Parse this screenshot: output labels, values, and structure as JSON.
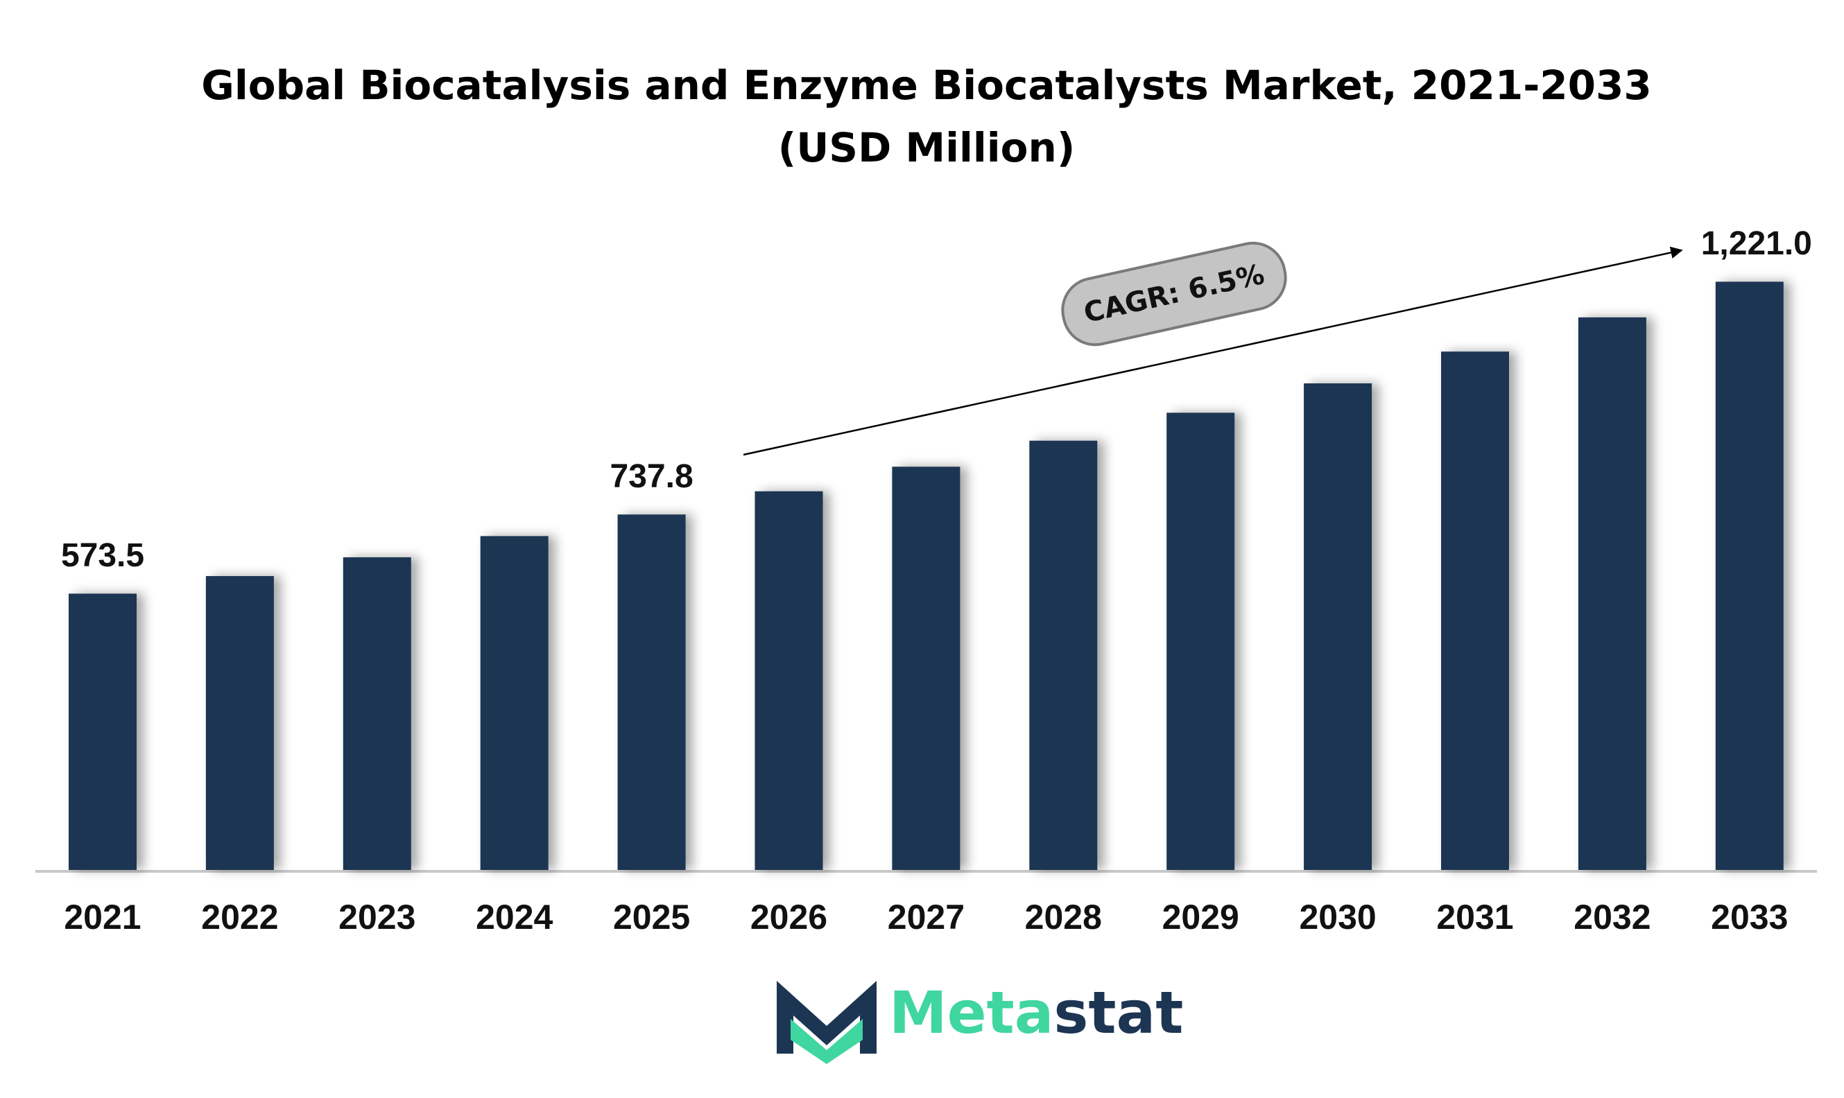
{
  "chart_data": {
    "type": "bar",
    "title": "Global Biocatalysis and Enzyme Biocatalysts Market, 2021-2033",
    "subtitle": "(USD Million)",
    "categories": [
      "2021",
      "2022",
      "2023",
      "2024",
      "2025",
      "2026",
      "2027",
      "2028",
      "2029",
      "2030",
      "2031",
      "2032",
      "2033"
    ],
    "values": [
      573.5,
      610,
      649,
      693,
      737.8,
      786,
      837,
      891,
      949,
      1010,
      1076,
      1147,
      1221.0
    ],
    "value_labels": [
      "573.5",
      null,
      null,
      null,
      "737.8",
      null,
      null,
      null,
      null,
      null,
      null,
      null,
      "1,221.0"
    ],
    "color": "#1c3553",
    "annotation": "CAGR: 6.5%",
    "logo": [
      "Meta",
      "stat"
    ]
  }
}
